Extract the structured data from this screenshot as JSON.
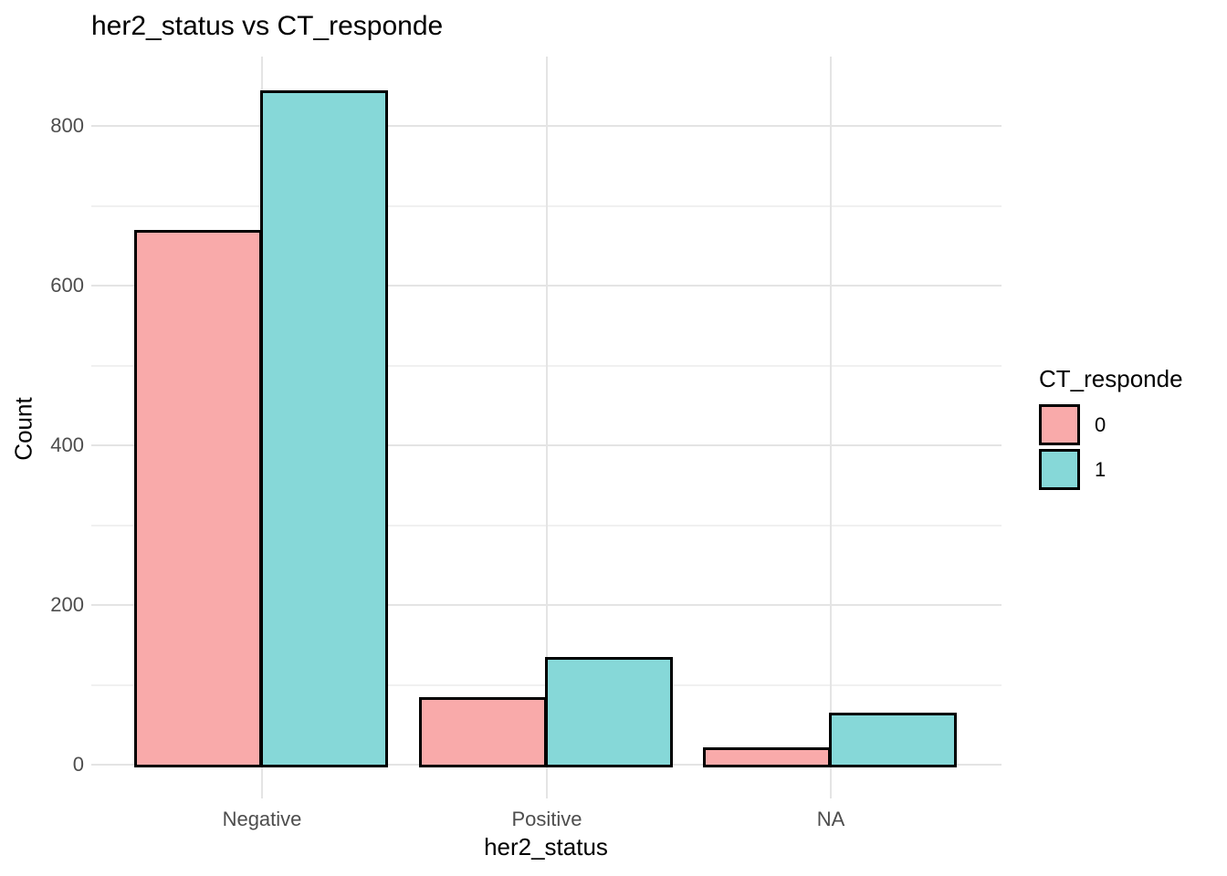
{
  "chart_data": {
    "type": "bar",
    "title": "her2_status vs CT_responde",
    "xlabel": "her2_status",
    "ylabel": "Count",
    "categories": [
      "Negative",
      "Positive",
      "NA"
    ],
    "series": [
      {
        "name": "0",
        "color": "#F9AAAA",
        "values": [
          670,
          85,
          22
        ]
      },
      {
        "name": "1",
        "color": "#86D8D8",
        "values": [
          845,
          135,
          65
        ]
      }
    ],
    "legend_title": "CT_responde",
    "legend_position": "right",
    "ylim": [
      0,
      887
    ],
    "yticks": [
      0,
      200,
      400,
      600,
      800
    ],
    "yticks_minor": [
      100,
      300,
      500,
      700
    ],
    "grid": "on",
    "bar_outline_color": "#000000",
    "axis_text_color": "#4D4D4D",
    "grid_major_color": "#E4E4E4",
    "grid_minor_color": "#F0F0F0",
    "background": "#FFFFFF"
  }
}
